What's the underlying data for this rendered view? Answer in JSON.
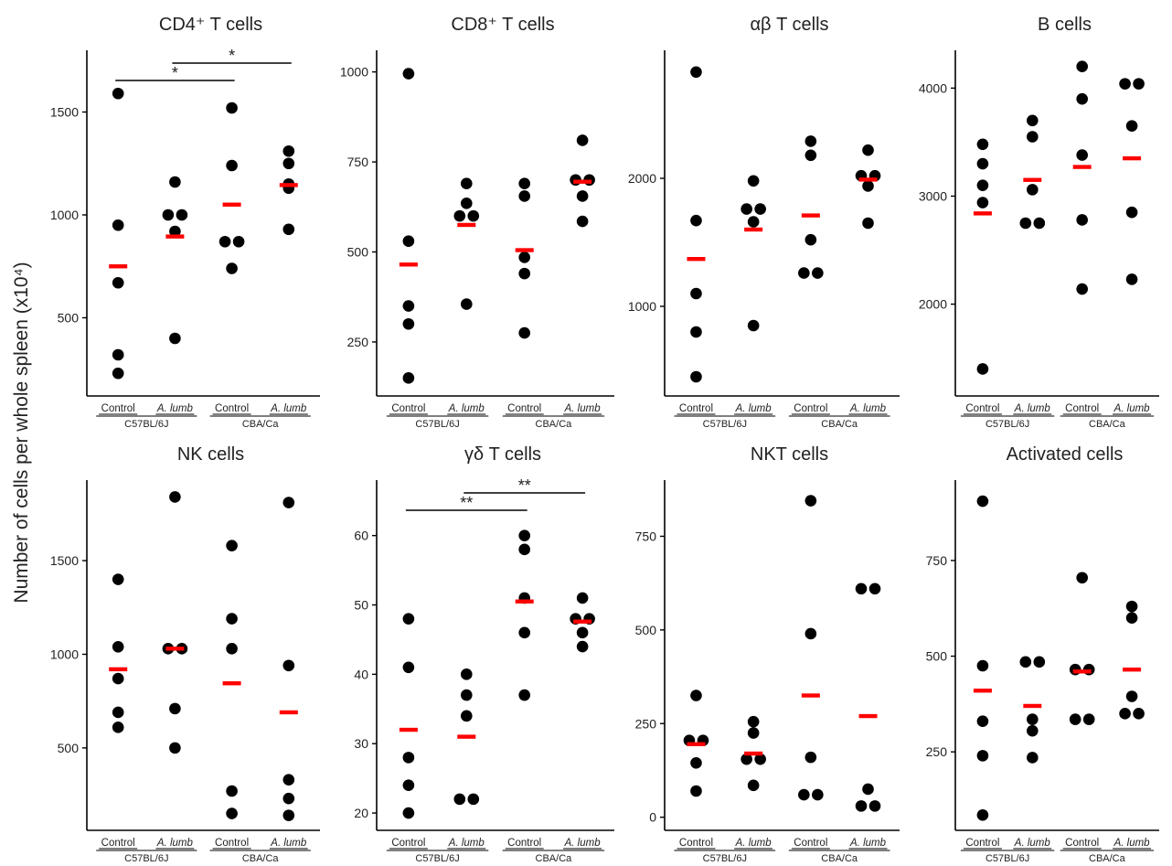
{
  "y_axis_label": "Number of cells per whole spleen (x10⁴)",
  "colors": {
    "point": "#000000",
    "mean": "#ff0000",
    "axis": "#000000",
    "text": "#222222"
  },
  "chart_data": [
    {
      "type": "scatter",
      "title": "CD4⁺ T cells",
      "categories": [
        "Control",
        "A. lumb",
        "Control",
        "A. lumb"
      ],
      "groups": [
        "C57BL/6J",
        "CBA/Ca"
      ],
      "yticks": [
        500,
        1000,
        1500
      ],
      "ylim": [
        120,
        1800
      ],
      "points": [
        [
          1590,
          950,
          670,
          320,
          230
        ],
        [
          1160,
          1000,
          1000,
          920,
          400
        ],
        [
          1520,
          1240,
          870,
          870,
          740
        ],
        [
          1310,
          1250,
          1150,
          1130,
          930
        ]
      ],
      "means": [
        750,
        895,
        1050,
        1145
      ],
      "significance": [
        {
          "from": 0,
          "to": 2,
          "label": "*"
        },
        {
          "from": 1,
          "to": 3,
          "label": "*"
        }
      ]
    },
    {
      "type": "scatter",
      "title": "CD8⁺ T cells",
      "categories": [
        "Control",
        "A. lumb",
        "Control",
        "A. lumb"
      ],
      "groups": [
        "C57BL/6J",
        "CBA/Ca"
      ],
      "yticks": [
        250,
        500,
        750,
        1000
      ],
      "ylim": [
        100,
        1060
      ],
      "points": [
        [
          995,
          530,
          350,
          300,
          150
        ],
        [
          690,
          635,
          600,
          600,
          355
        ],
        [
          690,
          655,
          485,
          440,
          275
        ],
        [
          810,
          700,
          700,
          655,
          585
        ]
      ],
      "means": [
        465,
        575,
        505,
        695
      ],
      "significance": []
    },
    {
      "type": "scatter",
      "title": "αβ T cells",
      "categories": [
        "Control",
        "A. lumb",
        "Control",
        "A. lumb"
      ],
      "groups": [
        "C57BL/6J",
        "CBA/Ca"
      ],
      "yticks": [
        1000,
        2000
      ],
      "ylim": [
        300,
        3000
      ],
      "points": [
        [
          2830,
          1670,
          1100,
          800,
          450
        ],
        [
          1980,
          1760,
          1760,
          1660,
          850
        ],
        [
          2290,
          2180,
          1520,
          1260,
          1260
        ],
        [
          2220,
          2020,
          2020,
          1940,
          1650
        ]
      ],
      "means": [
        1370,
        1600,
        1710,
        1990
      ],
      "significance": []
    },
    {
      "type": "scatter",
      "title": "B cells",
      "categories": [
        "Control",
        "A. lumb",
        "Control",
        "A. lumb"
      ],
      "groups": [
        "C57BL/6J",
        "CBA/Ca"
      ],
      "yticks": [
        2000,
        3000,
        4000
      ],
      "ylim": [
        1150,
        4350
      ],
      "points": [
        [
          3480,
          3300,
          3100,
          2940,
          1400
        ],
        [
          3700,
          3550,
          3060,
          2750,
          2750
        ],
        [
          4200,
          3900,
          3380,
          2780,
          2140
        ],
        [
          4040,
          4040,
          3650,
          2850,
          2230
        ]
      ],
      "means": [
        2840,
        3150,
        3270,
        3350
      ],
      "significance": []
    },
    {
      "type": "scatter",
      "title": "NK cells",
      "categories": [
        "Control",
        "A. lumb",
        "Control",
        "A. lumb"
      ],
      "groups": [
        "C57BL/6J",
        "CBA/Ca"
      ],
      "yticks": [
        500,
        1000,
        1500
      ],
      "ylim": [
        60,
        1930
      ],
      "points": [
        [
          1400,
          1040,
          870,
          690,
          610
        ],
        [
          1840,
          1030,
          1030,
          710,
          500
        ],
        [
          1580,
          1190,
          1030,
          270,
          150
        ],
        [
          1810,
          940,
          330,
          230,
          140
        ]
      ],
      "means": [
        920,
        1030,
        845,
        690
      ],
      "significance": []
    },
    {
      "type": "scatter",
      "title": "γδ T cells",
      "categories": [
        "Control",
        "A. lumb",
        "Control",
        "A. lumb"
      ],
      "groups": [
        "C57BL/6J",
        "CBA/Ca"
      ],
      "yticks": [
        20,
        30,
        40,
        50,
        60
      ],
      "ylim": [
        17.5,
        68
      ],
      "points": [
        [
          48,
          41,
          28,
          24,
          20
        ],
        [
          40,
          37,
          34,
          22,
          22
        ],
        [
          60,
          58,
          51,
          46,
          37
        ],
        [
          51,
          48,
          48,
          46,
          44
        ]
      ],
      "means": [
        32,
        31,
        50.5,
        47.6
      ],
      "significance": [
        {
          "from": 0,
          "to": 2,
          "label": "**"
        },
        {
          "from": 1,
          "to": 3,
          "label": "**"
        }
      ]
    },
    {
      "type": "scatter",
      "title": "NKT cells",
      "categories": [
        "Control",
        "A. lumb",
        "Control",
        "A. lumb"
      ],
      "groups": [
        "C57BL/6J",
        "CBA/Ca"
      ],
      "yticks": [
        0,
        250,
        500,
        750
      ],
      "ylim": [
        -35,
        900
      ],
      "points": [
        [
          325,
          205,
          205,
          145,
          70
        ],
        [
          255,
          225,
          155,
          155,
          85
        ],
        [
          845,
          490,
          160,
          60,
          60
        ],
        [
          610,
          610,
          75,
          30,
          30
        ]
      ],
      "means": [
        195,
        170,
        325,
        270
      ],
      "significance": []
    },
    {
      "type": "scatter",
      "title": "Activated cells",
      "categories": [
        "Control",
        "A. lumb",
        "Control",
        "A. lumb"
      ],
      "groups": [
        "C57BL/6J",
        "CBA/Ca"
      ],
      "yticks": [
        250,
        500,
        750
      ],
      "ylim": [
        45,
        960
      ],
      "points": [
        [
          905,
          475,
          330,
          240,
          85
        ],
        [
          485,
          485,
          335,
          305,
          235
        ],
        [
          705,
          465,
          465,
          335,
          335
        ],
        [
          630,
          600,
          395,
          350,
          350
        ]
      ],
      "means": [
        410,
        370,
        460,
        465
      ],
      "significance": []
    }
  ]
}
